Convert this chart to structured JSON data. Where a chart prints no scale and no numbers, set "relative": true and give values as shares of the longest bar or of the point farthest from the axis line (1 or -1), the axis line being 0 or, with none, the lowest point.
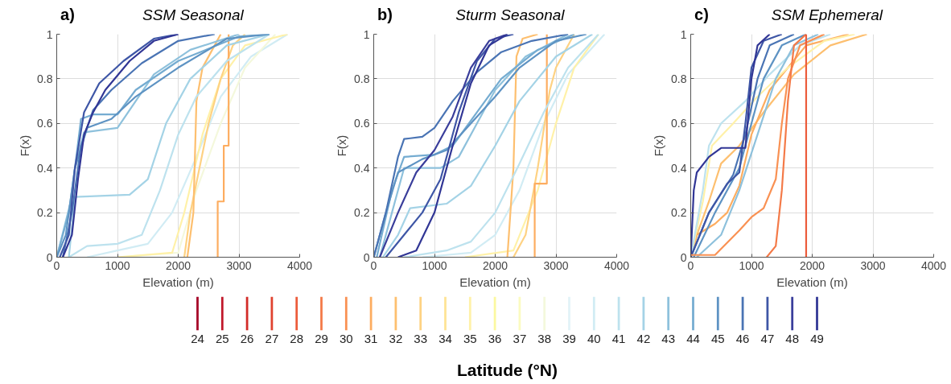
{
  "chart_data": [
    {
      "type": "line",
      "title": "SSM Seasonal",
      "annotations": [
        "a)"
      ],
      "xlabel": "Elevation (m)",
      "ylabel": "F(x)",
      "xlim": [
        0,
        4000
      ],
      "xticks": [
        0,
        1000,
        2000,
        3000,
        4000
      ],
      "ylim": [
        0,
        1
      ],
      "yticks": [
        0,
        0.2,
        0.4,
        0.6,
        0.8,
        1
      ],
      "grid": true,
      "line_style": "solid",
      "series": [
        {
          "color": "#d1ecf4",
          "x": [
            500,
            1000,
            1500,
            1900,
            2300,
            2700,
            3200,
            3800
          ],
          "values": [
            0,
            0.03,
            0.06,
            0.2,
            0.45,
            0.72,
            0.9,
            1
          ]
        },
        {
          "color": "#f4f8dc",
          "x": [
            1000,
            2000,
            2300,
            2700,
            3100,
            3600
          ],
          "values": [
            0,
            0.02,
            0.3,
            0.6,
            0.85,
            1
          ]
        },
        {
          "color": "#fff1a8",
          "x": [
            1000,
            1900,
            2100,
            2400,
            2700,
            3100,
            3800
          ],
          "values": [
            0,
            0.02,
            0.2,
            0.55,
            0.8,
            0.95,
            1
          ]
        },
        {
          "color": "#fed283",
          "x": [
            2100,
            2200,
            2500,
            2700,
            2900,
            3100
          ],
          "values": [
            0,
            0.2,
            0.6,
            0.8,
            0.95,
            1
          ]
        },
        {
          "color": "#fdbf6f",
          "x": [
            2150,
            2250,
            2300,
            2400,
            2600,
            2700
          ],
          "values": [
            0,
            0.2,
            0.7,
            0.85,
            0.95,
            1
          ]
        },
        {
          "color": "#fdad60",
          "x": [
            2650,
            2650,
            2750,
            2750,
            2830,
            2830
          ],
          "values": [
            0,
            0.25,
            0.25,
            0.5,
            0.5,
            1
          ]
        },
        {
          "color": "#bde2ee",
          "x": [
            200,
            500,
            1000,
            1400,
            1700,
            2000,
            2300,
            2800,
            3500
          ],
          "values": [
            0,
            0.05,
            0.06,
            0.1,
            0.3,
            0.55,
            0.72,
            0.88,
            1
          ]
        },
        {
          "color": "#a4d3e6",
          "x": [
            200,
            300,
            1200,
            1500,
            1800,
            2200,
            2800,
            3500
          ],
          "values": [
            0,
            0.27,
            0.28,
            0.35,
            0.6,
            0.8,
            0.95,
            1
          ]
        },
        {
          "color": "#8ec1dc",
          "x": [
            0,
            250,
            300,
            450,
            1000,
            1300,
            1600,
            2200,
            3000
          ],
          "values": [
            0,
            0.27,
            0.4,
            0.56,
            0.58,
            0.7,
            0.82,
            0.93,
            1
          ]
        },
        {
          "color": "#75acd1",
          "x": [
            0,
            200,
            300,
            400,
            600,
            1000,
            1300,
            2000,
            3000,
            3500
          ],
          "values": [
            0,
            0.2,
            0.4,
            0.62,
            0.64,
            0.64,
            0.75,
            0.88,
            0.99,
            1
          ]
        },
        {
          "color": "#5e93c3",
          "x": [
            0,
            150,
            300,
            500,
            900,
            1300,
            2000,
            2800,
            3500
          ],
          "values": [
            0,
            0.1,
            0.4,
            0.58,
            0.62,
            0.72,
            0.85,
            0.98,
            1
          ]
        },
        {
          "color": "#4a74b4",
          "x": [
            100,
            250,
            400,
            600,
            900,
            1400,
            2000,
            2600
          ],
          "values": [
            0,
            0.2,
            0.5,
            0.66,
            0.75,
            0.87,
            0.97,
            1
          ]
        },
        {
          "color": "#3e56a6",
          "x": [
            50,
            200,
            300,
            450,
            700,
            1100,
            1600,
            2000
          ],
          "values": [
            0,
            0.1,
            0.4,
            0.65,
            0.78,
            0.88,
            0.98,
            1
          ]
        },
        {
          "color": "#313695",
          "x": [
            100,
            250,
            350,
            450,
            600,
            800,
            1200,
            1600,
            2000
          ],
          "values": [
            0,
            0.1,
            0.35,
            0.55,
            0.65,
            0.75,
            0.88,
            0.97,
            1
          ]
        }
      ]
    },
    {
      "type": "line",
      "title": "Sturm Seasonal",
      "annotations": [
        "b)"
      ],
      "xlabel": "Elevation (m)",
      "ylabel": "F(x)",
      "xlim": [
        0,
        4000
      ],
      "xticks": [
        0,
        1000,
        2000,
        3000,
        4000
      ],
      "ylim": [
        0,
        1
      ],
      "yticks": [
        0,
        0.2,
        0.4,
        0.6,
        0.8,
        1
      ],
      "grid": true,
      "line_style": "solid",
      "series": [
        {
          "color": "#d1ecf4",
          "x": [
            800,
            1600,
            2000,
            2400,
            2800,
            3200,
            3800
          ],
          "values": [
            0,
            0.02,
            0.1,
            0.3,
            0.6,
            0.82,
            1
          ]
        },
        {
          "color": "#fff1a8",
          "x": [
            1500,
            2300,
            2700,
            3000,
            3300,
            3700
          ],
          "values": [
            0,
            0.03,
            0.3,
            0.6,
            0.85,
            1
          ]
        },
        {
          "color": "#fed283",
          "x": [
            2300,
            2500,
            2700,
            2900,
            3000,
            3300
          ],
          "values": [
            0,
            0.1,
            0.4,
            0.75,
            0.85,
            1
          ]
        },
        {
          "color": "#fdbf6f",
          "x": [
            2200,
            2300,
            2350,
            2450,
            2700
          ],
          "values": [
            0,
            0.4,
            0.9,
            0.98,
            1
          ]
        },
        {
          "color": "#fdad60",
          "x": [
            2650,
            2650,
            2850,
            2850
          ],
          "values": [
            0,
            0.33,
            0.33,
            1
          ]
        },
        {
          "color": "#bde2ee",
          "x": [
            500,
            1200,
            1600,
            2000,
            2400,
            2800,
            3200,
            3700
          ],
          "values": [
            0,
            0.03,
            0.07,
            0.2,
            0.42,
            0.65,
            0.85,
            1
          ]
        },
        {
          "color": "#a4d3e6",
          "x": [
            150,
            400,
            600,
            1200,
            1600,
            2000,
            2400,
            3000,
            3600
          ],
          "values": [
            0,
            0.1,
            0.22,
            0.24,
            0.32,
            0.5,
            0.7,
            0.9,
            1
          ]
        },
        {
          "color": "#8ec1dc",
          "x": [
            100,
            300,
            500,
            1100,
            1400,
            1700,
            2000,
            2500,
            3200
          ],
          "values": [
            0,
            0.2,
            0.4,
            0.4,
            0.45,
            0.6,
            0.75,
            0.9,
            1
          ]
        },
        {
          "color": "#75acd1",
          "x": [
            50,
            300,
            500,
            1000,
            1300,
            1700,
            2100,
            2700,
            3300
          ],
          "values": [
            0,
            0.3,
            0.45,
            0.46,
            0.5,
            0.65,
            0.8,
            0.93,
            1
          ]
        },
        {
          "color": "#5e93c3",
          "x": [
            0,
            200,
            400,
            800,
            1200,
            1600,
            2000,
            2400,
            3000,
            3500
          ],
          "values": [
            0,
            0.2,
            0.38,
            0.44,
            0.48,
            0.6,
            0.72,
            0.85,
            0.97,
            1
          ]
        },
        {
          "color": "#4a74b4",
          "x": [
            0,
            200,
            400,
            500,
            800,
            1000,
            1300,
            1700,
            2100,
            2600,
            3200
          ],
          "values": [
            0,
            0.2,
            0.45,
            0.53,
            0.54,
            0.58,
            0.7,
            0.83,
            0.92,
            0.97,
            1
          ]
        },
        {
          "color": "#3e56a6",
          "x": [
            200,
            500,
            800,
            1100,
            1400,
            1700,
            2000,
            2300
          ],
          "values": [
            0,
            0.1,
            0.2,
            0.35,
            0.65,
            0.88,
            0.98,
            1
          ]
        },
        {
          "color": "#3a3e9b",
          "x": [
            100,
            400,
            700,
            1000,
            1300,
            1600,
            1900,
            2200
          ],
          "values": [
            0,
            0.2,
            0.38,
            0.48,
            0.63,
            0.85,
            0.97,
            1
          ]
        },
        {
          "color": "#313695",
          "x": [
            400,
            700,
            1000,
            1300,
            1600,
            1900,
            2200
          ],
          "values": [
            0,
            0.03,
            0.2,
            0.5,
            0.78,
            0.95,
            1
          ]
        }
      ]
    },
    {
      "type": "line",
      "title": "SSM Ephemeral",
      "annotations": [
        "c)"
      ],
      "xlabel": "Elevation (m)",
      "ylabel": "F(x)",
      "xlim": [
        0,
        4000
      ],
      "xticks": [
        0,
        1000,
        2000,
        3000,
        4000
      ],
      "ylim": [
        0,
        1
      ],
      "yticks": [
        0,
        0.2,
        0.4,
        0.6,
        0.8,
        1
      ],
      "grid": true,
      "line_style": "solid",
      "series": [
        {
          "color": "#fdbf6f",
          "x": [
            0,
            100,
            300,
            500,
            800,
            1200,
            1700,
            2300,
            2900
          ],
          "values": [
            0,
            0.1,
            0.25,
            0.42,
            0.5,
            0.65,
            0.82,
            0.95,
            1
          ]
        },
        {
          "color": "#fdad60",
          "x": [
            0,
            100,
            400,
            600,
            800,
            1000,
            1300,
            1900,
            2600
          ],
          "values": [
            0,
            0.1,
            0.15,
            0.2,
            0.32,
            0.55,
            0.75,
            0.95,
            1
          ]
        },
        {
          "color": "#fff1a8",
          "x": [
            0,
            200,
            350,
            700,
            1100,
            1600,
            2200,
            2700
          ],
          "values": [
            0,
            0.25,
            0.5,
            0.6,
            0.72,
            0.85,
            0.97,
            1
          ]
        },
        {
          "color": "#bde2ee",
          "x": [
            0,
            200,
            300,
            500,
            900,
            1300,
            1800,
            2300
          ],
          "values": [
            0,
            0.3,
            0.5,
            0.6,
            0.7,
            0.82,
            0.95,
            1
          ]
        },
        {
          "color": "#8ec1dc",
          "x": [
            100,
            500,
            800,
            1100,
            1400,
            1700,
            2100
          ],
          "values": [
            0,
            0.1,
            0.3,
            0.55,
            0.8,
            0.95,
            1
          ]
        },
        {
          "color": "#5e93c3",
          "x": [
            50,
            400,
            800,
            1000,
            1200,
            1500,
            1900
          ],
          "values": [
            0,
            0.2,
            0.4,
            0.6,
            0.8,
            0.95,
            1
          ]
        },
        {
          "color": "#4a74b4",
          "x": [
            0,
            300,
            700,
            900,
            1100,
            1300,
            1700
          ],
          "values": [
            0,
            0.2,
            0.37,
            0.55,
            0.8,
            0.95,
            1
          ]
        },
        {
          "color": "#3e56a6",
          "x": [
            0,
            300,
            600,
            800,
            900,
            1000,
            1200,
            1500
          ],
          "values": [
            0,
            0.2,
            0.33,
            0.38,
            0.6,
            0.85,
            0.97,
            1
          ]
        },
        {
          "color": "#313695",
          "x": [
            0,
            50,
            100,
            300,
            500,
            900,
            1000,
            1100,
            1300
          ],
          "values": [
            0,
            0.3,
            0.38,
            0.45,
            0.49,
            0.49,
            0.8,
            0.95,
            1
          ]
        },
        {
          "color": "#f99153",
          "x": [
            0,
            400,
            800,
            1000,
            1200,
            1400,
            1500,
            1600,
            1800,
            2200
          ],
          "values": [
            0.01,
            0.01,
            0.12,
            0.18,
            0.22,
            0.35,
            0.6,
            0.8,
            0.95,
            1
          ]
        },
        {
          "color": "#f47a48",
          "x": [
            1250,
            1400,
            1500,
            1600,
            1700,
            1900
          ],
          "values": [
            0,
            0.05,
            0.3,
            0.7,
            0.95,
            1
          ]
        },
        {
          "color": "#ec5c3b",
          "x": [
            1900,
            1900
          ],
          "values": [
            0,
            1
          ]
        }
      ]
    },
    {
      "type": "bar",
      "relative": true,
      "xlabel": "Latitude (°N)",
      "categories": [
        "24",
        "25",
        "26",
        "27",
        "28",
        "29",
        "30",
        "31",
        "32",
        "33",
        "34",
        "35",
        "36",
        "37",
        "38",
        "39",
        "40",
        "41",
        "42",
        "43",
        "44",
        "45",
        "46",
        "47",
        "48",
        "49"
      ],
      "values": [
        1,
        1,
        1,
        1,
        1,
        1,
        1,
        1,
        1,
        1,
        1,
        1,
        1,
        1,
        1,
        1,
        1,
        1,
        1,
        1,
        1,
        1,
        1,
        1,
        1,
        1
      ],
      "colors": [
        "#a50026",
        "#c0182a",
        "#d22b27",
        "#e0422f",
        "#ec5c3b",
        "#f47a48",
        "#f99153",
        "#fdad60",
        "#fdbf6f",
        "#fed283",
        "#fee395",
        "#fff1a8",
        "#fbf8a0",
        "#fbfbc0",
        "#f4f8dc",
        "#e2f3f8",
        "#d1ecf4",
        "#bde2ee",
        "#a4d3e6",
        "#8ec1dc",
        "#75acd1",
        "#5e93c3",
        "#4a74b4",
        "#3e56a6",
        "#3a3e9b",
        "#313695"
      ]
    }
  ]
}
